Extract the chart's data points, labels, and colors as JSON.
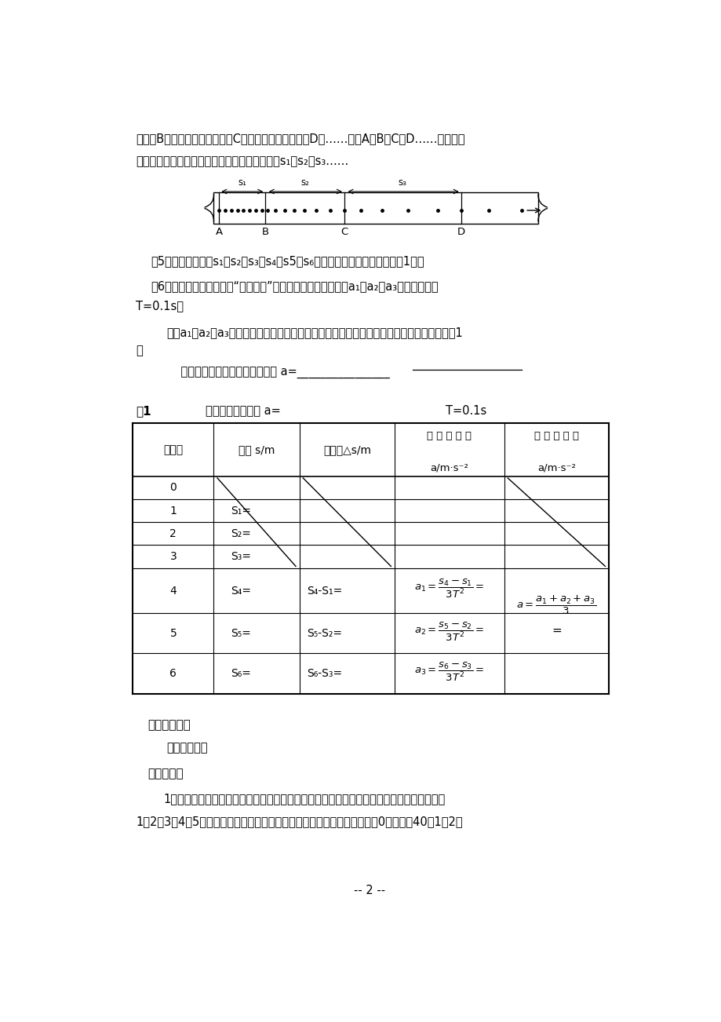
{
  "bg_color": "#ffffff",
  "text_color": "#000000",
  "page_width": 9.2,
  "page_height": 13.02,
  "para1": "面标明B，在第十一点下面标明C，在第十六点下面标明D，……，点A、B、C、D……叫做计数",
  "para1b": "点，如图所示。两个相邻计数点间的距离分别是s₁、s₂、s₃……",
  "para2": "（5）测出六段位移s₁、s₂、s₃、s₄、s5、s₆的长度，把测量结果填入下表1中。",
  "para3": "（6）根据测量结果，利用“实验原理”中给出的公式算出加速度a₁、a₂、a₃的值。注意：",
  "para4": "T=0.1s。",
  "para5": "求出a₁、a₂、a₃的平均值，它就是小车做匀变速直线运动的加速度。把计算的结果填入下表1",
  "para5b": "中",
  "para6": "    小车做匀变速直线运动的加速度 a=________________",
  "table_title_left": "表1",
  "table_title_mid": "计算小车的加速度 a=",
  "table_title_right": "T=0.1s",
  "sec5_title": "五、布置作业",
  "sec5_content": "完成实验报告",
  "sec6_title": "六、参考题",
  "sec6_p1": "1、图为用打点计时器测定匀变速直线运动的加速度的实验时记录下的一条纸带。纸带上选取",
  "sec6_p2": "1、2、3、4、5各点为记数点，将直尺靠在纸带边，零刻线与纸带上某一点0对齐。甁40到1、2、",
  "page_num": "-- 2 --"
}
